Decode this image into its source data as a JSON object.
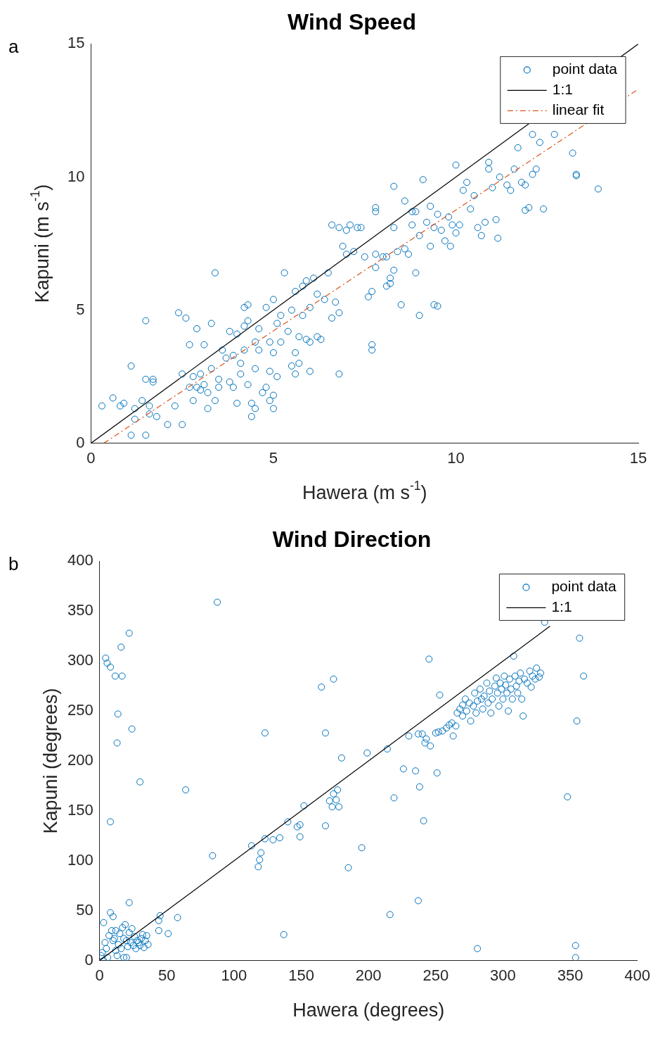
{
  "chart_data": [
    {
      "type": "scatter",
      "title": "Wind Speed",
      "xlabel": "Hawera (m s$^{-1}$)",
      "ylabel": "Kapuni (m s$^{-1}$)",
      "annotations": [
        "a"
      ],
      "xlim": [
        0,
        15
      ],
      "ylim": [
        0,
        15
      ],
      "xticks": [
        0,
        5,
        10,
        15
      ],
      "yticks": [
        0,
        5,
        10,
        15
      ],
      "legend": "top right",
      "series": [
        {
          "name": "point data",
          "color": "#0072bd",
          "marker": "circle",
          "x": [
            0.3,
            0.6,
            0.8,
            0.9,
            1.1,
            1.1,
            1.2,
            1.2,
            1.4,
            1.5,
            1.5,
            1.5,
            1.6,
            1.6,
            1.7,
            1.7,
            1.8,
            2.1,
            2.3,
            2.4,
            2.5,
            2.5,
            2.6,
            2.7,
            2.7,
            2.8,
            2.8,
            2.9,
            2.9,
            3.0,
            3.0,
            3.1,
            3.1,
            3.2,
            3.2,
            3.3,
            3.3,
            3.4,
            3.4,
            3.5,
            3.5,
            3.6,
            3.7,
            3.8,
            3.8,
            3.9,
            3.9,
            4.0,
            4.0,
            4.1,
            4.1,
            4.2,
            4.2,
            4.2,
            4.3,
            4.3,
            4.3,
            4.4,
            4.4,
            4.5,
            4.5,
            4.5,
            4.6,
            4.6,
            4.7,
            4.8,
            4.8,
            4.9,
            4.9,
            4.9,
            5.0,
            5.0,
            5.0,
            5.0,
            5.1,
            5.1,
            5.2,
            5.2,
            5.3,
            5.4,
            5.5,
            5.5,
            5.6,
            5.6,
            5.6,
            5.7,
            5.7,
            5.8,
            5.8,
            5.9,
            5.9,
            6.0,
            6.0,
            6.0,
            6.1,
            6.2,
            6.2,
            6.3,
            6.4,
            6.5,
            6.6,
            6.7,
            6.8,
            6.8,
            6.6,
            6.8,
            7.0,
            7.1,
            7.3,
            7.4,
            6.9,
            7.0,
            7.2,
            7.5,
            7.8,
            7.7,
            7.6,
            7.8,
            8.0,
            8.1,
            8.2,
            8.2,
            8.1,
            8.3,
            8.4,
            8.6,
            8.7,
            8.8,
            8.9,
            8.9,
            9.0,
            9.2,
            9.3,
            9.4,
            9.5,
            9.6,
            9.7,
            9.8,
            9.9,
            10.0,
            10.1,
            10.2,
            10.3,
            10.4,
            10.5,
            10.6,
            10.8,
            10.9,
            11.0,
            11.1,
            11.2,
            11.4,
            11.5,
            11.6,
            11.8,
            11.9,
            12.1,
            12.2,
            9.1,
            10.0,
            10.9,
            11.7,
            12.1,
            12.3,
            12.7,
            13.2,
            13.3,
            13.3,
            13.9,
            12.4,
            11.9,
            12.0,
            11.15,
            10.7,
            9.85,
            9.3,
            9.0,
            9.4,
            9.5,
            8.5,
            7.7,
            7.7,
            7.8,
            8.3,
            8.6,
            7.8,
            8.3,
            8.8
          ],
          "values": [
            1.4,
            1.7,
            1.4,
            1.5,
            2.9,
            0.3,
            0.9,
            1.3,
            1.6,
            0.3,
            2.4,
            4.6,
            1.1,
            1.4,
            2.4,
            2.3,
            1.0,
            0.7,
            1.4,
            4.9,
            0.7,
            2.6,
            4.7,
            2.1,
            3.7,
            1.6,
            2.5,
            2.1,
            4.3,
            2.0,
            2.6,
            3.7,
            2.2,
            1.3,
            1.9,
            4.5,
            2.8,
            1.6,
            6.4,
            2.1,
            2.4,
            3.5,
            3.2,
            4.2,
            2.3,
            2.1,
            3.3,
            1.5,
            4.1,
            2.6,
            3.0,
            4.4,
            5.1,
            3.5,
            4.6,
            5.2,
            2.2,
            1.0,
            1.5,
            1.3,
            3.8,
            2.8,
            4.3,
            3.5,
            1.9,
            2.1,
            5.1,
            1.6,
            3.8,
            2.7,
            5.4,
            1.3,
            1.8,
            3.4,
            4.5,
            2.5,
            3.8,
            4.8,
            6.4,
            4.2,
            5.0,
            2.9,
            3.4,
            2.6,
            5.7,
            4.0,
            3.0,
            5.9,
            4.8,
            3.9,
            6.1,
            3.8,
            2.7,
            5.1,
            6.2,
            4.0,
            5.6,
            3.9,
            5.4,
            6.4,
            4.7,
            5.3,
            4.9,
            2.6,
            8.2,
            8.1,
            8.0,
            8.2,
            8.1,
            8.1,
            7.4,
            7.1,
            7.2,
            7.0,
            7.1,
            5.7,
            5.5,
            6.6,
            7.0,
            7.0,
            6.2,
            6.0,
            5.9,
            6.5,
            7.2,
            7.3,
            7.1,
            8.2,
            8.7,
            6.4,
            7.8,
            8.3,
            8.9,
            8.1,
            8.6,
            8.0,
            7.6,
            8.5,
            8.2,
            7.9,
            8.2,
            9.5,
            9.8,
            8.8,
            9.3,
            8.1,
            8.3,
            10.3,
            9.6,
            8.4,
            10.0,
            9.7,
            9.5,
            10.3,
            9.8,
            9.7,
            10.1,
            10.3,
            9.9,
            10.45,
            10.55,
            11.1,
            11.6,
            11.3,
            11.6,
            10.9,
            10.1,
            10.05,
            9.55,
            8.8,
            8.75,
            8.85,
            7.7,
            7.8,
            7.4,
            7.4,
            4.8,
            5.2,
            5.15,
            5.2,
            3.5,
            3.7,
            8.85,
            9.65,
            9.1,
            8.7,
            8.1,
            8.7
          ]
        },
        {
          "name": "1:1",
          "type": "line",
          "color": "#000000",
          "marker": "none",
          "line_style": "solid",
          "x": [
            0,
            15
          ],
          "values": [
            0,
            15
          ]
        },
        {
          "name": "linear fit",
          "type": "line",
          "color": "#d95319",
          "marker": "none",
          "line_style": "dashed",
          "x": [
            0.35,
            15
          ],
          "values": [
            0,
            13.3
          ]
        }
      ]
    },
    {
      "type": "scatter",
      "title": "Wind Direction",
      "xlabel": "Hawera (degrees)",
      "ylabel": "Kapuni (degrees)",
      "annotations": [
        "b"
      ],
      "xlim": [
        0,
        400
      ],
      "ylim": [
        0,
        400
      ],
      "xticks": [
        0,
        50,
        100,
        150,
        200,
        250,
        300,
        350,
        400
      ],
      "yticks": [
        0,
        50,
        100,
        150,
        200,
        250,
        300,
        350,
        400
      ],
      "legend": "top right",
      "series": [
        {
          "name": "point data",
          "color": "#0072bd",
          "marker": "circle",
          "x": [
            4.5,
            5.6,
            8,
            11.6,
            13.6,
            13,
            16.7,
            16,
            22,
            24,
            30,
            8,
            64,
            87.5,
            84,
            123,
            165,
            174,
            168,
            180,
            199,
            214,
            226,
            235,
            245,
            253,
            219,
            241,
            238,
            251,
            195,
            185,
            216,
            237,
            281,
            137,
            354,
            354,
            348,
            355,
            357,
            360,
            331,
            113,
            118,
            119,
            120,
            123,
            129,
            134,
            140,
            147,
            149,
            149,
            152,
            168,
            171,
            174,
            177,
            176,
            178,
            173,
            240,
            242,
            243,
            246,
            250,
            252,
            255,
            258,
            260,
            262,
            263,
            265,
            266,
            268,
            270,
            270,
            272,
            273,
            275,
            276,
            278,
            279,
            280,
            281,
            283,
            284,
            285,
            286,
            288,
            289,
            290,
            291,
            292,
            294,
            295,
            296,
            297,
            298,
            299,
            300,
            301,
            302,
            303,
            304,
            305,
            306,
            307,
            308,
            309,
            310,
            311,
            312,
            313,
            314,
            315,
            316,
            318,
            320,
            321,
            322,
            324,
            325,
            327,
            328,
            237,
            230,
            2,
            3,
            4,
            5,
            6,
            7,
            8,
            9,
            10,
            10,
            11,
            12,
            12,
            13,
            14,
            15,
            16,
            17,
            18,
            18,
            19,
            20,
            20,
            21,
            22,
            22,
            23,
            24,
            25,
            26,
            27,
            28,
            29,
            30,
            31,
            32,
            33,
            34,
            35,
            36,
            44,
            44,
            45,
            51,
            58,
            3,
            1
          ],
          "values": [
            303,
            298,
            294,
            285,
            247,
            218,
            285,
            314,
            328,
            232,
            179,
            139,
            171,
            359,
            105,
            228,
            274,
            282,
            228,
            203,
            208,
            212,
            192,
            190,
            302,
            266,
            163,
            140,
            174,
            188,
            113,
            93,
            46,
            60,
            12,
            26,
            15,
            3,
            164,
            240,
            323,
            285,
            339,
            115,
            94,
            101,
            108,
            122,
            121,
            123,
            139,
            134,
            124,
            136,
            155,
            135,
            160,
            167,
            171,
            161,
            154,
            154,
            227,
            218,
            222,
            215,
            228,
            229,
            230,
            233,
            236,
            238,
            225,
            235,
            248,
            252,
            256,
            245,
            262,
            250,
            258,
            240,
            255,
            268,
            248,
            260,
            272,
            262,
            252,
            265,
            278,
            258,
            270,
            248,
            262,
            275,
            283,
            268,
            255,
            278,
            272,
            262,
            285,
            276,
            268,
            250,
            282,
            272,
            262,
            305,
            285,
            275,
            268,
            280,
            288,
            262,
            245,
            282,
            278,
            290,
            274,
            285,
            282,
            293,
            284,
            288,
            227,
            225,
            8,
            38,
            18,
            12,
            3,
            25,
            48,
            30,
            20,
            44,
            22,
            10,
            30,
            5,
            16,
            27,
            12,
            33,
            3,
            22,
            36,
            3,
            20,
            14,
            58,
            28,
            18,
            32,
            15,
            24,
            12,
            20,
            18,
            15,
            22,
            26,
            13,
            20,
            25,
            16,
            30,
            40,
            45,
            27,
            43,
            0,
            5
          ]
        },
        {
          "name": "1:1",
          "type": "line",
          "color": "#000000",
          "marker": "none",
          "line_style": "solid",
          "x": [
            0,
            335
          ],
          "values": [
            0,
            335
          ]
        }
      ]
    }
  ]
}
